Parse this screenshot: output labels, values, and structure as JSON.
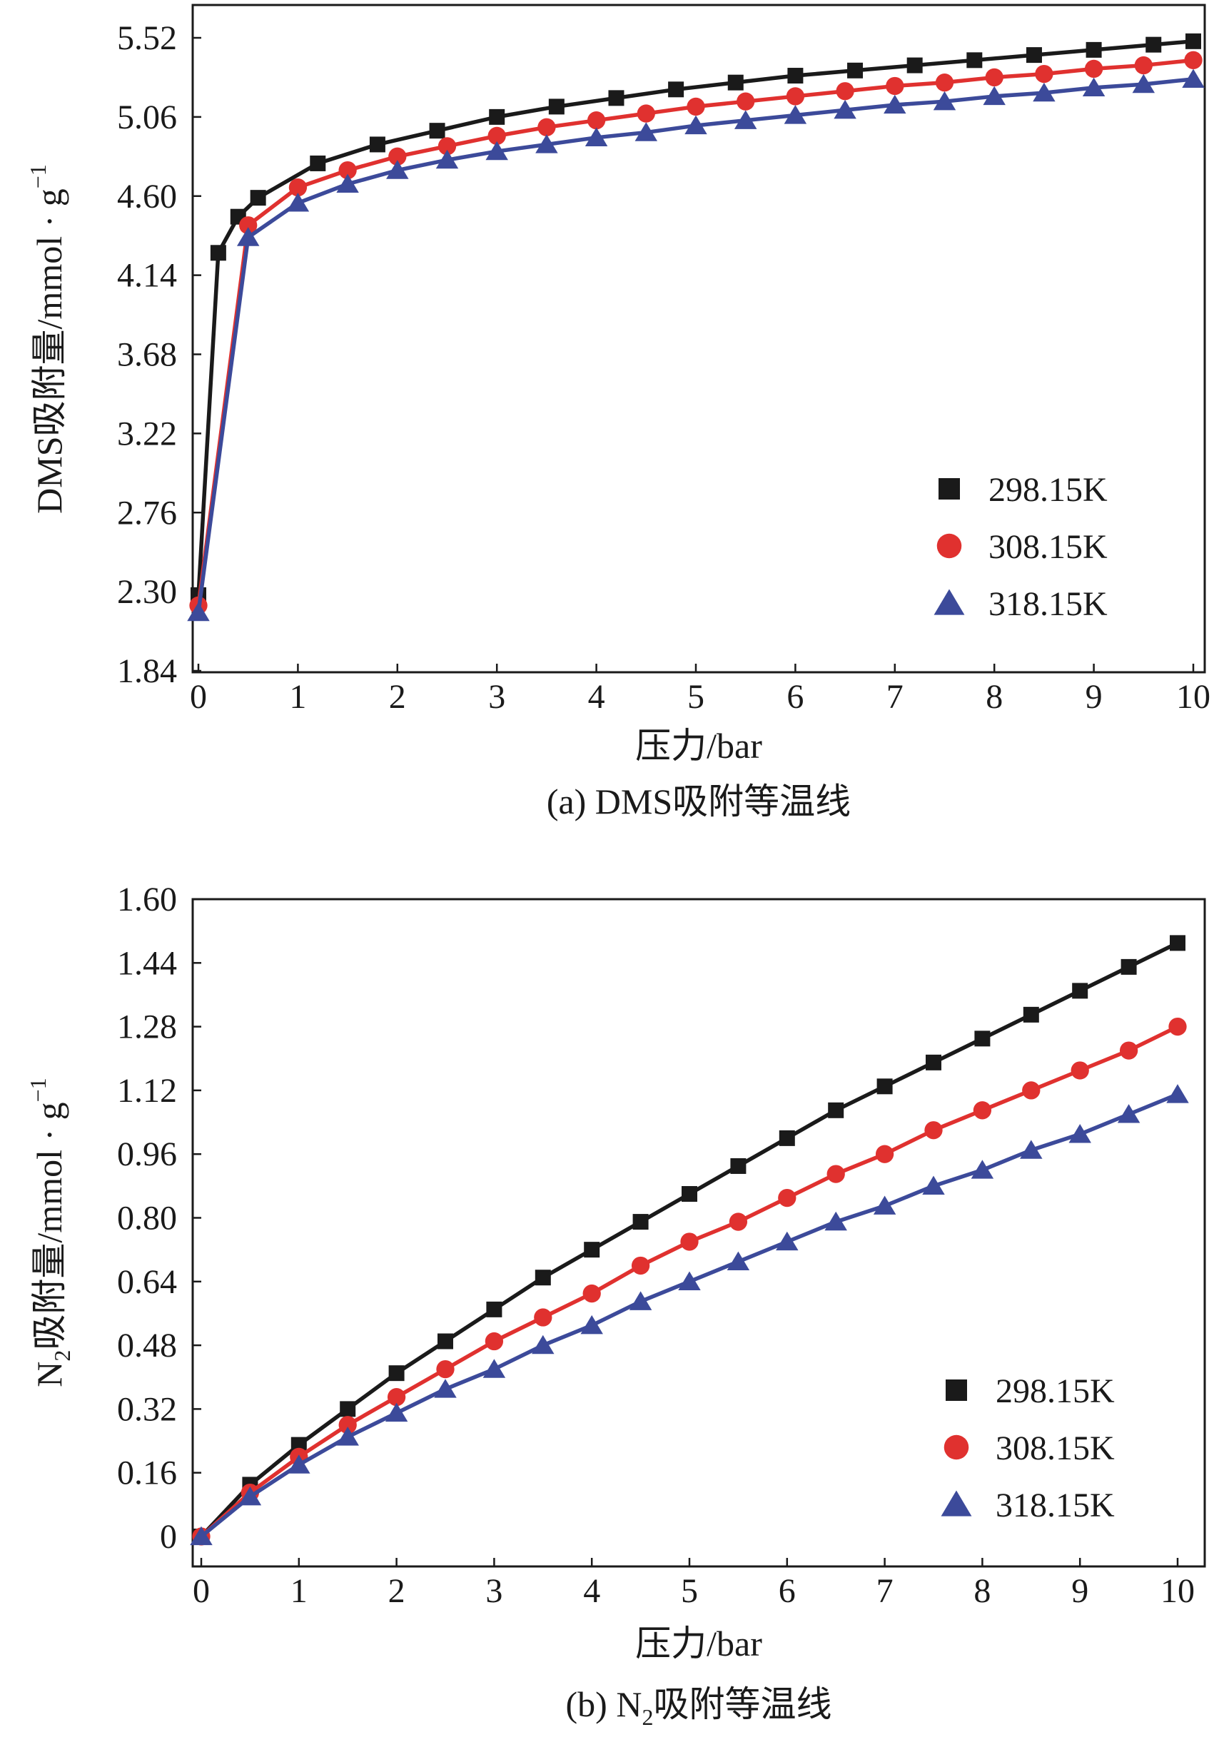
{
  "chart_data": [
    {
      "type": "line",
      "caption": "(a) DMS吸附等温线",
      "xlabel": "压力/bar",
      "ylabel": "DMS吸附量/mmol · g",
      "ylabel_sup": "−1",
      "xlim": [
        0,
        10
      ],
      "ylim": [
        1.84,
        5.52
      ],
      "xticks": [
        "0",
        "1",
        "2",
        "3",
        "4",
        "5",
        "6",
        "7",
        "8",
        "9",
        "10"
      ],
      "yticks": [
        "1.84",
        "2.30",
        "2.76",
        "3.22",
        "3.68",
        "4.14",
        "4.60",
        "5.06",
        "5.52"
      ],
      "legend_position": "right",
      "series": [
        {
          "name": "298.15K",
          "color": "#1a1a1a",
          "marker": "square",
          "x": [
            0,
            0.2,
            0.4,
            0.6,
            1.2,
            1.8,
            2.4,
            3.0,
            3.6,
            4.2,
            4.8,
            5.4,
            6.0,
            6.6,
            7.2,
            7.8,
            8.4,
            9.0,
            9.6,
            10.0
          ],
          "y": [
            2.28,
            4.27,
            4.48,
            4.59,
            4.79,
            4.9,
            4.98,
            5.06,
            5.12,
            5.17,
            5.22,
            5.26,
            5.3,
            5.33,
            5.36,
            5.39,
            5.42,
            5.45,
            5.48,
            5.5
          ]
        },
        {
          "name": "308.15K",
          "color": "#e0312f",
          "marker": "circle",
          "x": [
            0,
            0.5,
            1.0,
            1.5,
            2.0,
            2.5,
            3.0,
            3.5,
            4.0,
            4.5,
            5.0,
            5.5,
            6.0,
            6.5,
            7.0,
            7.5,
            8.0,
            8.5,
            9.0,
            9.5,
            10.0
          ],
          "y": [
            2.22,
            4.43,
            4.65,
            4.75,
            4.83,
            4.89,
            4.95,
            5.0,
            5.04,
            5.08,
            5.12,
            5.15,
            5.18,
            5.21,
            5.24,
            5.26,
            5.29,
            5.31,
            5.34,
            5.36,
            5.39
          ]
        },
        {
          "name": "318.15K",
          "color": "#3c4a9a",
          "marker": "triangle",
          "x": [
            0,
            0.5,
            1.0,
            1.5,
            2.0,
            2.5,
            3.0,
            3.5,
            4.0,
            4.5,
            5.0,
            5.5,
            6.0,
            6.5,
            7.0,
            7.5,
            8.0,
            8.5,
            9.0,
            9.5,
            10.0
          ],
          "y": [
            2.18,
            4.36,
            4.56,
            4.67,
            4.75,
            4.81,
            4.86,
            4.9,
            4.94,
            4.97,
            5.01,
            5.04,
            5.07,
            5.1,
            5.13,
            5.15,
            5.18,
            5.2,
            5.23,
            5.25,
            5.28
          ]
        }
      ]
    },
    {
      "type": "line",
      "caption_pre": "(b) N",
      "caption_sub": "2",
      "caption_post": "吸附等温线",
      "xlabel": "压力/bar",
      "ylabel_pre": "N",
      "ylabel_sub": "2",
      "ylabel_post": "吸附量/mmol · g",
      "ylabel_sup": "−1",
      "xlim": [
        0,
        10
      ],
      "ylim": [
        0,
        1.6
      ],
      "xticks": [
        "0",
        "1",
        "2",
        "3",
        "4",
        "5",
        "6",
        "7",
        "8",
        "9",
        "10"
      ],
      "yticks": [
        "0",
        "0.16",
        "0.32",
        "0.48",
        "0.64",
        "0.80",
        "0.96",
        "1.12",
        "1.28",
        "1.44",
        "1.60"
      ],
      "legend_position": "right",
      "series": [
        {
          "name": "298.15K",
          "color": "#1a1a1a",
          "marker": "square",
          "x": [
            0,
            0.5,
            1.0,
            1.5,
            2.0,
            2.5,
            3.0,
            3.5,
            4.0,
            4.5,
            5.0,
            5.5,
            6.0,
            6.5,
            7.0,
            7.5,
            8.0,
            8.5,
            9.0,
            9.5,
            10.0
          ],
          "y": [
            0.0,
            0.13,
            0.23,
            0.32,
            0.41,
            0.49,
            0.57,
            0.65,
            0.72,
            0.79,
            0.86,
            0.93,
            1.0,
            1.07,
            1.13,
            1.19,
            1.25,
            1.31,
            1.37,
            1.43,
            1.49
          ]
        },
        {
          "name": "308.15K",
          "color": "#e0312f",
          "marker": "circle",
          "x": [
            0,
            0.5,
            1.0,
            1.5,
            2.0,
            2.5,
            3.0,
            3.5,
            4.0,
            4.5,
            5.0,
            5.5,
            6.0,
            6.5,
            7.0,
            7.5,
            8.0,
            8.5,
            9.0,
            9.5,
            10.0
          ],
          "y": [
            0.0,
            0.11,
            0.2,
            0.28,
            0.35,
            0.42,
            0.49,
            0.55,
            0.61,
            0.68,
            0.74,
            0.79,
            0.85,
            0.91,
            0.96,
            1.02,
            1.07,
            1.12,
            1.17,
            1.22,
            1.28
          ]
        },
        {
          "name": "318.15K",
          "color": "#3c4a9a",
          "marker": "triangle",
          "x": [
            0,
            0.5,
            1.0,
            1.5,
            2.0,
            2.5,
            3.0,
            3.5,
            4.0,
            4.5,
            5.0,
            5.5,
            6.0,
            6.5,
            7.0,
            7.5,
            8.0,
            8.5,
            9.0,
            9.5,
            10.0
          ],
          "y": [
            0.0,
            0.1,
            0.18,
            0.25,
            0.31,
            0.37,
            0.42,
            0.48,
            0.53,
            0.59,
            0.64,
            0.69,
            0.74,
            0.79,
            0.83,
            0.88,
            0.92,
            0.97,
            1.01,
            1.06,
            1.11
          ]
        }
      ]
    }
  ]
}
